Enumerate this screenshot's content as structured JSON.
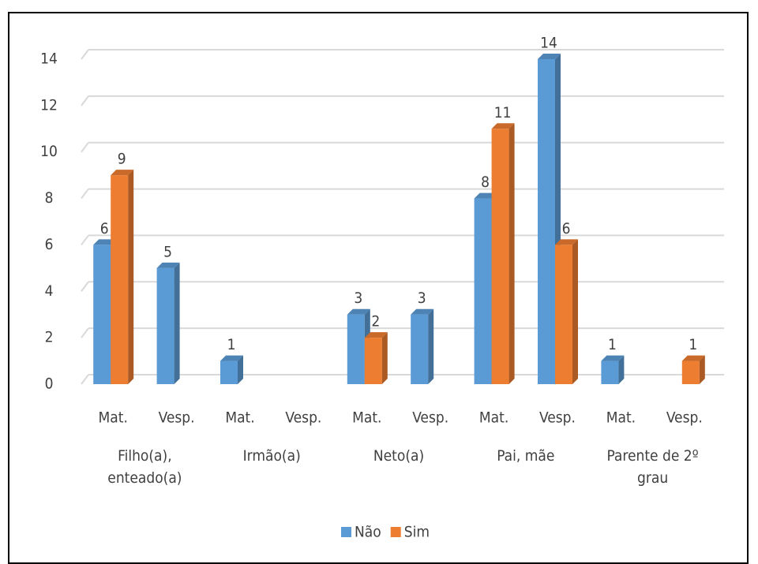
{
  "chart_data": {
    "type": "bar3d",
    "categories": [
      "Mat.",
      "Vesp.",
      "Mat.",
      "Vesp.",
      "Mat.",
      "Vesp.",
      "Mat.",
      "Vesp.",
      "Mat.",
      "Vesp."
    ],
    "groups": [
      {
        "label": "Filho(a), enteado(a)",
        "span": 2
      },
      {
        "label": "Irmão(a)",
        "span": 2
      },
      {
        "label": "Neto(a)",
        "span": 2
      },
      {
        "label": "Pai, mãe",
        "span": 2
      },
      {
        "label": "Parente de 2º grau",
        "span": 2
      }
    ],
    "series": [
      {
        "name": "Não",
        "color": "#5b9bd5",
        "values": [
          6,
          5,
          1,
          null,
          3,
          3,
          8,
          14,
          1,
          null
        ]
      },
      {
        "name": "Sim",
        "color": "#ed7d31",
        "values": [
          9,
          null,
          null,
          null,
          2,
          null,
          11,
          6,
          null,
          1
        ]
      }
    ],
    "ylim": [
      0,
      14
    ],
    "yticks": [
      0,
      2,
      4,
      6,
      8,
      10,
      12,
      14
    ],
    "grid": true,
    "legend": "bottom"
  }
}
